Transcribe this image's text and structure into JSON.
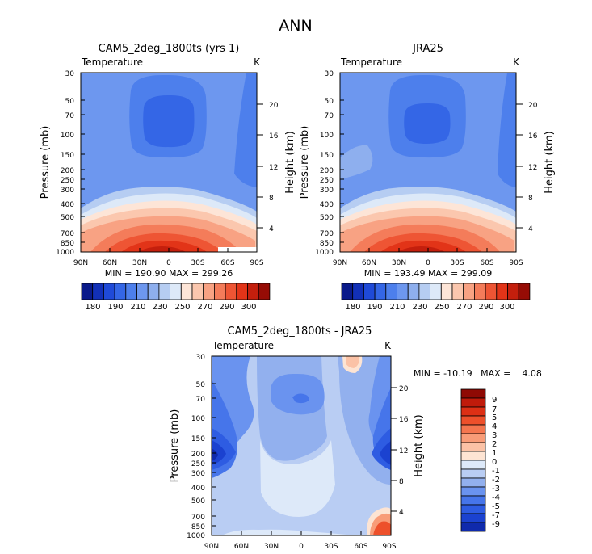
{
  "page": {
    "title": "ANN"
  },
  "colors": {
    "palette_top": [
      "#0a1a8a",
      "#1230b8",
      "#1f4ad8",
      "#3466e6",
      "#4d7fec",
      "#6d97ef",
      "#8eafee",
      "#b6cdf2",
      "#dde9f8",
      "#fde5d7",
      "#fbc7ae",
      "#f8a283",
      "#f47c5a",
      "#ee5534",
      "#e23418",
      "#c41f0d",
      "#960c05"
    ],
    "palette_diff": [
      "#08137e",
      "#0f2aac",
      "#1b42d0",
      "#2e5ce2",
      "#4675ea",
      "#6a93ef",
      "#92b0ee",
      "#b9cdf3",
      "#dde9f9",
      "#fde4d3",
      "#fbc2a6",
      "#f89c78",
      "#f4764f",
      "#ed502b",
      "#dd3015",
      "#c01b0b",
      "#8f0a04"
    ]
  },
  "chart_data": [
    {
      "type": "heatmap",
      "title": "CAM5_2deg_1800ts (yrs 1)",
      "left_label": "Temperature",
      "right_label": "K",
      "ylabel": "Pressure (mb)",
      "y2label": "Height (km)",
      "x_ticks": [
        "90N",
        "60N",
        "30N",
        "0",
        "30S",
        "60S",
        "90S"
      ],
      "y_ticks": [
        "30",
        "50",
        "70",
        "100",
        "150",
        "200",
        "250",
        "300",
        "400",
        "500",
        "700",
        "850",
        "1000"
      ],
      "y2_ticks": [
        "20",
        "16",
        "12",
        "8",
        "4"
      ],
      "stats": "MIN = 190.90   MAX = 299.26",
      "colorbar_labels": [
        "180",
        "190",
        "210",
        "230",
        "250",
        "270",
        "290",
        "300"
      ],
      "colorbar_levels": 17
    },
    {
      "type": "heatmap",
      "title": "JRA25",
      "left_label": "Temperature",
      "right_label": "K",
      "ylabel": "Pressure (mb)",
      "y2label": "Height (km)",
      "x_ticks": [
        "90N",
        "60N",
        "30N",
        "0",
        "30S",
        "60S",
        "90S"
      ],
      "y_ticks": [
        "30",
        "50",
        "70",
        "100",
        "150",
        "200",
        "250",
        "300",
        "400",
        "500",
        "700",
        "850",
        "1000"
      ],
      "y2_ticks": [
        "20",
        "16",
        "12",
        "8",
        "4"
      ],
      "stats": "MIN = 193.49   MAX = 299.09",
      "colorbar_labels": [
        "180",
        "190",
        "210",
        "230",
        "250",
        "270",
        "290",
        "300"
      ],
      "colorbar_levels": 17
    },
    {
      "type": "heatmap",
      "title": "CAM5_2deg_1800ts - JRA25",
      "left_label": "Temperature",
      "right_label": "K",
      "ylabel": "Pressure (mb)",
      "y2label": "Height (km)",
      "x_ticks": [
        "90N",
        "60N",
        "30N",
        "0",
        "30S",
        "60S",
        "90S"
      ],
      "y_ticks": [
        "30",
        "50",
        "70",
        "100",
        "150",
        "200",
        "250",
        "300",
        "400",
        "500",
        "700",
        "850",
        "1000"
      ],
      "y2_ticks": [
        "20",
        "16",
        "12",
        "8",
        "4"
      ],
      "stats": "MIN = -10.19   MAX =    4.08",
      "colorbar_labels": [
        "9",
        "7",
        "5",
        "4",
        "3",
        "2",
        "1",
        "0",
        "-1",
        "-2",
        "-3",
        "-4",
        "-5",
        "-7",
        "-9"
      ],
      "colorbar_levels": 16
    }
  ]
}
